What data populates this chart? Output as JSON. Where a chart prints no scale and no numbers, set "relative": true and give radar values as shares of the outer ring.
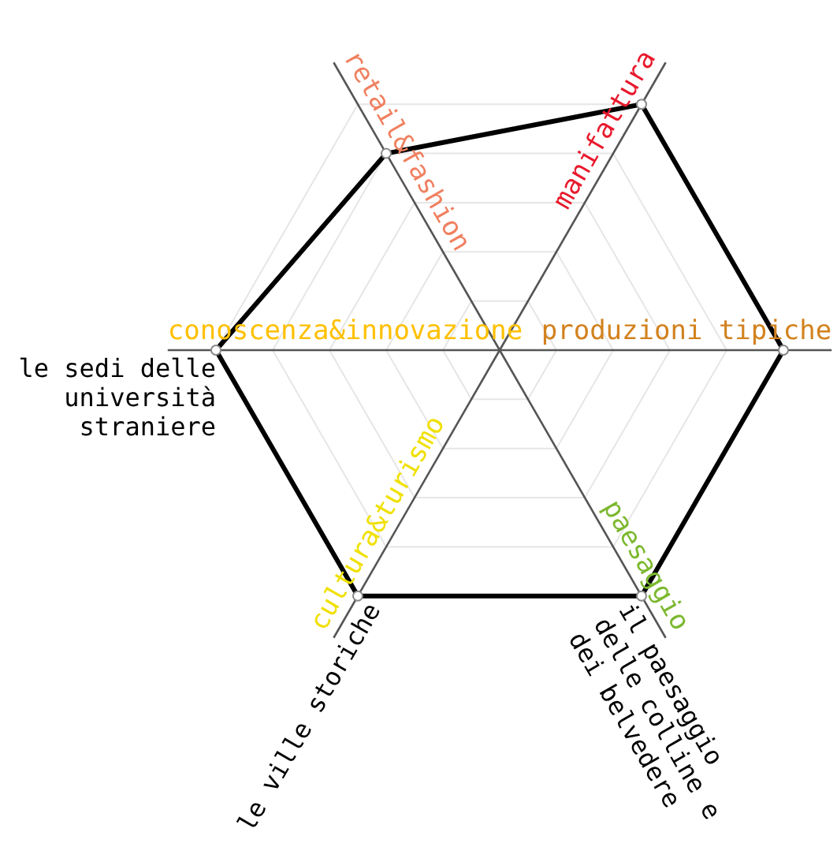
{
  "chart_data": {
    "type": "radar",
    "relative": true,
    "grid": true,
    "marker": "circle",
    "categories": [
      "manifattura",
      "produzioni tipiche",
      "paesaggio",
      "cultura&turismo",
      "conoscenza&innovazione",
      "retail&fashion"
    ],
    "colors": [
      "#e8192c",
      "#d2821e",
      "#7cb82f",
      "#f0e000",
      "#ffc000",
      "#f08060"
    ],
    "series": [
      {
        "color": "#000000",
        "values": [
          1,
          1,
          1,
          1,
          1,
          0.8
        ]
      }
    ],
    "annotations": [
      {
        "text": "il paesaggio\ndelle colline e\ndei belvedere",
        "x": "paesaggio"
      },
      {
        "text": "le ville storiche",
        "x": "cultura&turismo"
      },
      {
        "text": "le sedi delle\nuniversità\nstraniere",
        "x": "conoscenza&innovazione"
      }
    ]
  }
}
